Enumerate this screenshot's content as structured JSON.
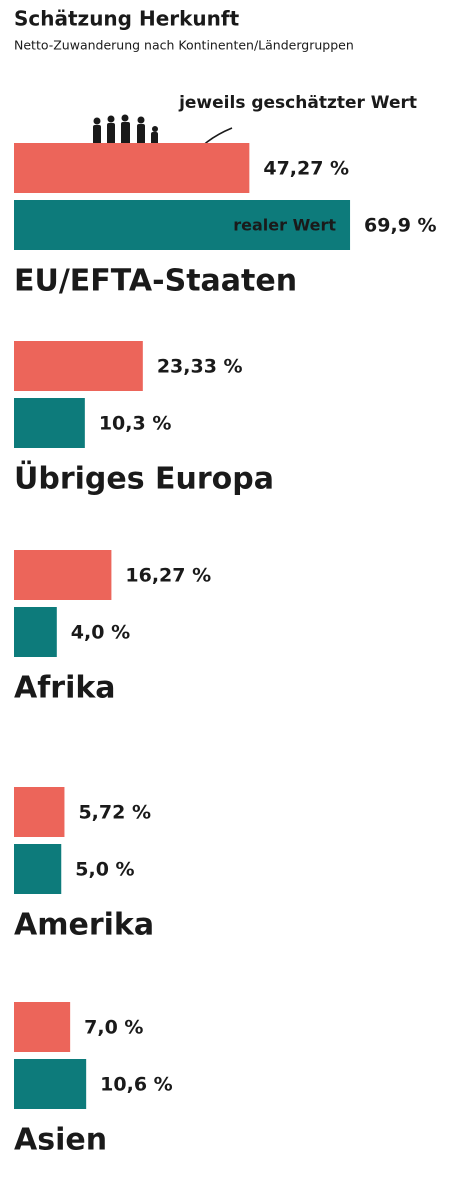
{
  "chart_data": {
    "type": "bar",
    "orientation": "horizontal",
    "title": "Schätzung Herkunft",
    "subtitle": "Netto-Zuwanderung nach Kontinenten/Ländergruppen",
    "categories": [
      "EU/EFTA-Staaten",
      "Übriges Europa",
      "Afrika",
      "Amerika",
      "Asien"
    ],
    "series": [
      {
        "name": "jeweils geschätzter Wert",
        "color": "#ec655a",
        "values": [
          47.27,
          23.33,
          16.27,
          5.72,
          7.0
        ],
        "value_labels": [
          "47,27 %",
          "23,33 %",
          "16,27 %",
          "5,72 %",
          "7,0 %"
        ]
      },
      {
        "name": "realer Wert",
        "color": "#0d7b7b",
        "values": [
          69.9,
          10.3,
          4.0,
          5.0,
          10.6
        ],
        "value_labels": [
          "69,9 %",
          "10,3 %",
          "4,0 %",
          "5,0 %",
          "10,6 %"
        ]
      }
    ]
  }
}
